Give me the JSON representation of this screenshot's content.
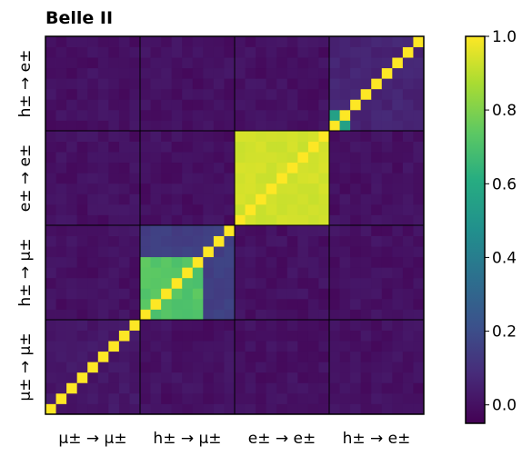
{
  "chart_data": {
    "type": "heatmap",
    "title": "Belle II",
    "categories": [
      "μ± → μ±",
      "h± → μ±",
      "e± → e±",
      "h± → e±"
    ],
    "bins_per_block": 9,
    "value_range": [
      -0.05,
      1.0
    ],
    "colorbar": {
      "ticks": [
        0.0,
        0.2,
        0.4,
        0.6,
        0.8,
        1.0
      ],
      "tick_labels": [
        "0.0",
        "0.2",
        "0.4",
        "0.6",
        "0.8",
        "1.0"
      ],
      "colormap": "viridis"
    },
    "block_values": {
      "diagonal": 1.0,
      "off_block_background": 0.0,
      "e_to_e_within_block": 0.93,
      "h_to_mu_within_block_strong": 0.72,
      "h_to_mu_within_block_weak": 0.15,
      "h_to_e_within_block_notable": 0.55,
      "h_to_e_within_block_weak": 0.06
    },
    "colors": {
      "block_border": "#000000",
      "cell_grid": "#000000"
    }
  }
}
